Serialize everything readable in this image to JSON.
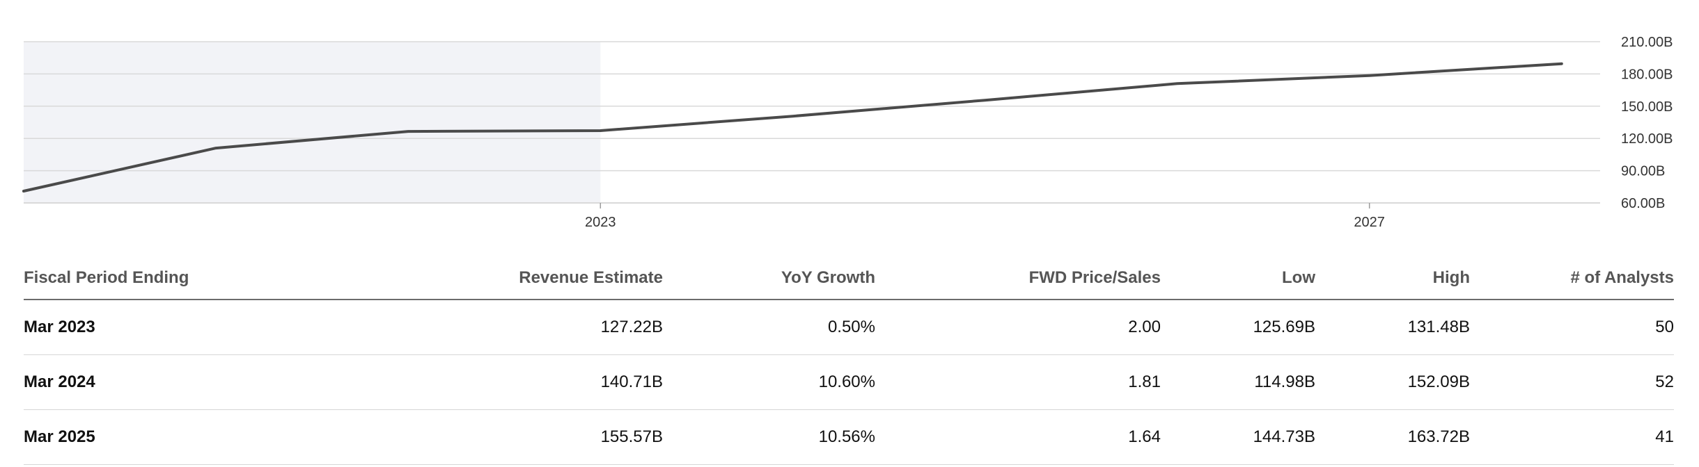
{
  "chart_data": {
    "type": "line",
    "x": [
      2020,
      2021,
      2022,
      2023,
      2024,
      2025,
      2026,
      2027,
      2028
    ],
    "series": [
      {
        "values": [
          71.0,
          111.0,
          126.5,
          127.22,
          140.71,
          155.57,
          171.0,
          178.5,
          189.5
        ]
      }
    ],
    "xticks": [
      {
        "value": 2023,
        "label": "2023"
      },
      {
        "value": 2027,
        "label": "2027"
      }
    ],
    "yticks": [
      {
        "value": 60,
        "label": "60.00B"
      },
      {
        "value": 90,
        "label": "90.00B"
      },
      {
        "value": 120,
        "label": "120.00B"
      },
      {
        "value": 150,
        "label": "150.00B"
      },
      {
        "value": 180,
        "label": "180.00B"
      },
      {
        "value": 210,
        "label": "210.00B"
      }
    ],
    "xlim": [
      2020,
      2028.2
    ],
    "ylim": [
      60,
      210
    ],
    "shaded_until": 2023,
    "grid": true,
    "line_color": "#4a4a4a",
    "shade_color": "#f2f3f7",
    "grid_color": "#d9d9d9"
  },
  "table": {
    "headers": {
      "period": "Fiscal Period Ending",
      "revenue": "Revenue Estimate",
      "yoy": "YoY Growth",
      "fwd": "FWD Price/Sales",
      "low": "Low",
      "high": "High",
      "analysts": "# of Analysts"
    },
    "rows": [
      {
        "period": "Mar 2023",
        "revenue": "127.22B",
        "yoy": "0.50%",
        "fwd": "2.00",
        "low": "125.69B",
        "high": "131.48B",
        "analysts": "50"
      },
      {
        "period": "Mar 2024",
        "revenue": "140.71B",
        "yoy": "10.60%",
        "fwd": "1.81",
        "low": "114.98B",
        "high": "152.09B",
        "analysts": "52"
      },
      {
        "period": "Mar 2025",
        "revenue": "155.57B",
        "yoy": "10.56%",
        "fwd": "1.64",
        "low": "144.73B",
        "high": "163.72B",
        "analysts": "41"
      }
    ]
  }
}
